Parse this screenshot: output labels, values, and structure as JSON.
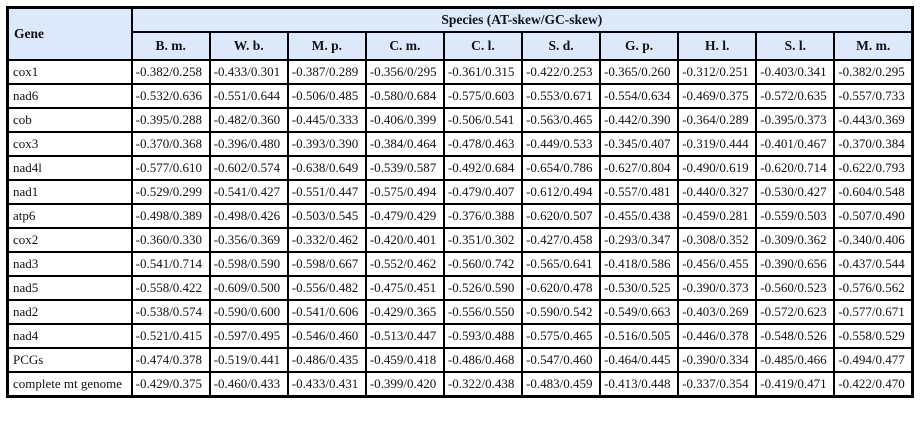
{
  "table": {
    "gene_header": "Gene",
    "species_header": "Species (AT-skew/GC-skew)",
    "species": [
      "B. m.",
      "W. b.",
      "M. p.",
      "C. m.",
      "C. l.",
      "S. d.",
      "G. p.",
      "H. l.",
      "S. l.",
      "M. m."
    ],
    "rows": [
      {
        "gene": "cox1",
        "values": [
          "-0.382/0.258",
          "-0.433/0.301",
          "-0.387/0.289",
          "-0.356/0/295",
          "-0.361/0.315",
          "-0.422/0.253",
          "-0.365/0.260",
          "-0.312/0.251",
          "-0.403/0.341",
          "-0.382/0.295"
        ]
      },
      {
        "gene": "nad6",
        "values": [
          "-0.532/0.636",
          "-0.551/0.644",
          "-0.506/0.485",
          "-0.580/0.684",
          "-0.575/0.603",
          "-0.553/0.671",
          "-0.554/0.634",
          "-0.469/0.375",
          "-0.572/0.635",
          "-0.557/0.733"
        ]
      },
      {
        "gene": "cob",
        "values": [
          "-0.395/0.288",
          "-0.482/0.360",
          "-0.445/0.333",
          "-0.406/0.399",
          "-0.506/0.541",
          "-0.563/0.465",
          "-0.442/0.390",
          "-0.364/0.289",
          "-0.395/0.373",
          "-0.443/0.369"
        ]
      },
      {
        "gene": "cox3",
        "values": [
          "-0.370/0.368",
          "-0.396/0.480",
          "-0.393/0.390",
          "-0.384/0.464",
          "-0.478/0.463",
          "-0.449/0.533",
          "-0.345/0.407",
          "-0.319/0.444",
          "-0.401/0.467",
          "-0.370/0.384"
        ]
      },
      {
        "gene": "nad4l",
        "values": [
          "-0.577/0.610",
          "-0.602/0.574",
          "-0.638/0.649",
          "-0.539/0.587",
          "-0.492/0.684",
          "-0.654/0.786",
          "-0.627/0.804",
          "-0.490/0.619",
          "-0.620/0.714",
          "-0.622/0.793"
        ]
      },
      {
        "gene": "nad1",
        "values": [
          "-0.529/0.299",
          "-0.541/0.427",
          "-0.551/0.447",
          "-0.575/0.494",
          "-0.479/0.407",
          "-0.612/0.494",
          "-0.557/0.481",
          "-0.440/0.327",
          "-0.530/0.427",
          "-0.604/0.548"
        ]
      },
      {
        "gene": "atp6",
        "values": [
          "-0.498/0.389",
          "-0.498/0.426",
          "-0.503/0.545",
          "-0.479/0.429",
          "-0.376/0.388",
          "-0.620/0.507",
          "-0.455/0.438",
          "-0.459/0.281",
          "-0.559/0.503",
          "-0.507/0.490"
        ]
      },
      {
        "gene": "cox2",
        "values": [
          "-0.360/0.330",
          "-0.356/0.369",
          "-0.332/0.462",
          "-0.420/0.401",
          "-0.351/0.302",
          "-0.427/0.458",
          "-0.293/0.347",
          "-0.308/0.352",
          "-0.309/0.362",
          "-0.340/0.406"
        ]
      },
      {
        "gene": "nad3",
        "values": [
          "-0.541/0.714",
          "-0.598/0.590",
          "-0.598/0.667",
          "-0.552/0.462",
          "-0.560/0.742",
          "-0.565/0.641",
          "-0.418/0.586",
          "-0.456/0.455",
          "-0.390/0.656",
          "-0.437/0.544"
        ]
      },
      {
        "gene": "nad5",
        "values": [
          "-0.558/0.422",
          "-0.609/0.500",
          "-0.556/0.482",
          "-0.475/0.451",
          "-0.526/0.590",
          "-0.620/0.478",
          "-0.530/0.525",
          "-0.390/0.373",
          "-0.560/0.523",
          "-0.576/0.562"
        ]
      },
      {
        "gene": "nad2",
        "values": [
          "-0.538/0.574",
          "-0.590/0.600",
          "-0.541/0.606",
          "-0.429/0.365",
          "-0.556/0.550",
          "-0.590/0.542",
          "-0.549/0.663",
          "-0.403/0.269",
          "-0.572/0.623",
          "-0.577/0.671"
        ]
      },
      {
        "gene": "nad4",
        "values": [
          "-0.521/0.415",
          "-0.597/0.495",
          "-0.546/0.460",
          "-0.513/0.447",
          "-0.593/0.488",
          "-0.575/0.465",
          "-0.516/0.505",
          "-0.446/0.378",
          "-0.548/0.526",
          "-0.558/0.529"
        ]
      },
      {
        "gene": "PCGs",
        "values": [
          "-0.474/0.378",
          "-0.519/0.441",
          "-0.486/0.435",
          "-0.459/0.418",
          "-0.486/0.468",
          "-0.547/0.460",
          "-0.464/0.445",
          "-0.390/0.334",
          "-0.485/0.466",
          "-0.494/0.477"
        ]
      },
      {
        "gene": "complete mt genome",
        "values": [
          "-0.429/0.375",
          "-0.460/0.433",
          "-0.433/0.431",
          "-0.399/0.420",
          "-0.322/0.438",
          "-0.483/0.459",
          "-0.413/0.448",
          "-0.337/0.354",
          "-0.419/0.471",
          "-0.422/0.470"
        ]
      }
    ],
    "colors": {
      "header_bg": "#dbe9fb",
      "border": "#000000",
      "cell_bg": "#ffffff",
      "text": "#111111"
    }
  }
}
